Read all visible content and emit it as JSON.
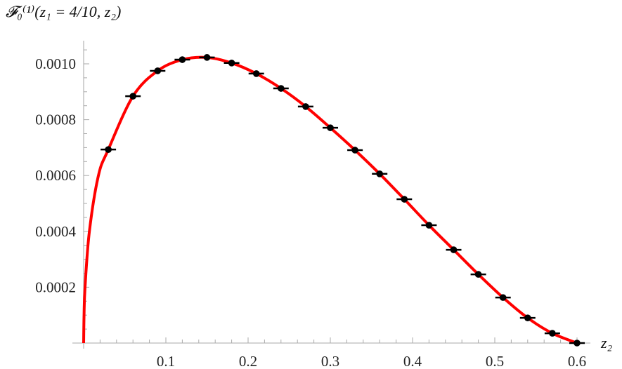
{
  "chart_data": {
    "type": "scatter",
    "title": "𝓕₀⁽¹⁾(z₁ = 4/10, z₂)",
    "xlabel": "z₂",
    "ylabel": "",
    "xlim": [
      0,
      0.6
    ],
    "ylim": [
      0,
      0.00107
    ],
    "x_ticks": [
      "0.1",
      "0.2",
      "0.3",
      "0.4",
      "0.5",
      "0.6"
    ],
    "y_ticks": [
      "0.0002",
      "0.0004",
      "0.0006",
      "0.0008",
      "0.0010"
    ],
    "grid": false,
    "series": [
      {
        "kind": "points-with-xerror",
        "color": "#000000",
        "x": [
          0.03,
          0.06,
          0.09,
          0.12,
          0.15,
          0.18,
          0.21,
          0.24,
          0.27,
          0.3,
          0.33,
          0.36,
          0.39,
          0.42,
          0.45,
          0.48,
          0.51,
          0.54,
          0.57,
          0.6
        ],
        "y": [
          0.000693,
          0.000884,
          0.000975,
          0.001015,
          0.001023,
          0.001003,
          0.000965,
          0.000912,
          0.000847,
          0.000771,
          0.000691,
          0.000606,
          0.000515,
          0.000422,
          0.000334,
          0.000246,
          0.000163,
          9e-05,
          3.5e-05,
          0.0
        ]
      },
      {
        "kind": "curve",
        "color": "#ff0000",
        "x": [
          0,
          0.0005,
          0.0017,
          0.007,
          0.018,
          0.03,
          0.06,
          0.09,
          0.12,
          0.15,
          0.18,
          0.21,
          0.24,
          0.27,
          0.3,
          0.33,
          0.36,
          0.39,
          0.42,
          0.45,
          0.48,
          0.51,
          0.54,
          0.57,
          0.6
        ],
        "y": [
          0,
          0.0001,
          0.0002,
          0.0004,
          0.0006,
          0.000693,
          0.000884,
          0.000975,
          0.001015,
          0.001023,
          0.001003,
          0.000965,
          0.000912,
          0.000847,
          0.000771,
          0.000691,
          0.000606,
          0.000515,
          0.000422,
          0.000334,
          0.000246,
          0.000163,
          9e-05,
          3.5e-05,
          0.0
        ]
      }
    ]
  }
}
